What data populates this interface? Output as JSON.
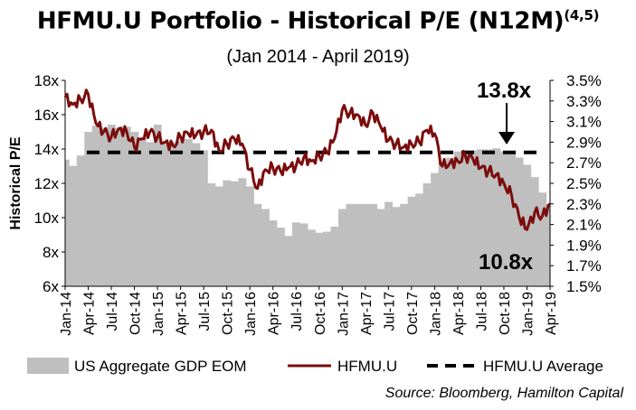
{
  "title": "HFMU.U Portfolio - Historical P/E (N12M)",
  "title_superscript": "(4,5)",
  "subtitle": "(Jan 2014 - April 2019)",
  "source": "Source: Bloomberg, Hamilton Capital",
  "colors": {
    "area": "#bfbfbf",
    "line": "#7b0c0c",
    "average": "#000000",
    "text": "#000000"
  },
  "chart_data": {
    "type": "line",
    "title": "HFMU.U Portfolio - Historical P/E (N12M)",
    "subtitle": "(Jan 2014 - April 2019)",
    "ylabel": "Historical P/E",
    "ylim": [
      6,
      18
    ],
    "y_ticks": [
      "6x",
      "8x",
      "10x",
      "12x",
      "14x",
      "16x",
      "18x"
    ],
    "y2lim": [
      1.5,
      3.5
    ],
    "y2_ticks": [
      "1.5%",
      "1.7%",
      "1.9%",
      "2.1%",
      "2.3%",
      "2.5%",
      "2.7%",
      "2.9%",
      "3.1%",
      "3.3%",
      "3.5%"
    ],
    "x_ticks": [
      "Jan-14",
      "Apr-14",
      "Jul-14",
      "Oct-14",
      "Jan-15",
      "Apr-15",
      "Jul-15",
      "Oct-15",
      "Jan-16",
      "Apr-16",
      "Jul-16",
      "Oct-16",
      "Jan-17",
      "Apr-17",
      "Jul-17",
      "Oct-17",
      "Jan-18",
      "Apr-18",
      "Jul-18",
      "Oct-18",
      "Jan-19",
      "Apr-19"
    ],
    "legend": {
      "position": "bottom",
      "entries": [
        "US Aggregate GDP EOM",
        "HFMU.U",
        "HFMU.U Average"
      ]
    },
    "annotations": [
      {
        "text": "13.8x",
        "points_to": "HFMU.U Average"
      },
      {
        "text": "10.8x",
        "points_to": "HFMU.U"
      }
    ],
    "series": [
      {
        "name": "US Aggregate GDP EOM",
        "type": "area",
        "axis": "right",
        "x": [
          "2014-01",
          "2014-02",
          "2014-03",
          "2014-04",
          "2014-05",
          "2014-06",
          "2014-07",
          "2014-08",
          "2014-09",
          "2014-10",
          "2014-11",
          "2014-12",
          "2015-01",
          "2015-02",
          "2015-03",
          "2015-04",
          "2015-05",
          "2015-06",
          "2015-07",
          "2015-08",
          "2015-09",
          "2015-10",
          "2015-11",
          "2015-12",
          "2016-01",
          "2016-02",
          "2016-03",
          "2016-04",
          "2016-05",
          "2016-06",
          "2016-07",
          "2016-08",
          "2016-09",
          "2016-10",
          "2016-11",
          "2016-12",
          "2017-01",
          "2017-02",
          "2017-03",
          "2017-04",
          "2017-05",
          "2017-06",
          "2017-07",
          "2017-08",
          "2017-09",
          "2017-10",
          "2017-11",
          "2017-12",
          "2018-01",
          "2018-02",
          "2018-03",
          "2018-04",
          "2018-05",
          "2018-06",
          "2018-07",
          "2018-08",
          "2018-09",
          "2018-10",
          "2018-11",
          "2018-12",
          "2019-01",
          "2019-02",
          "2019-03",
          "2019-04"
        ],
        "values": [
          2.73,
          2.67,
          2.77,
          3.0,
          3.06,
          3.04,
          3.07,
          3.04,
          3.05,
          3.0,
          2.94,
          2.9,
          3.07,
          2.9,
          2.9,
          2.91,
          2.93,
          2.89,
          2.82,
          2.5,
          2.47,
          2.53,
          2.52,
          2.55,
          2.47,
          2.3,
          2.25,
          2.14,
          2.07,
          1.99,
          2.12,
          2.11,
          2.05,
          2.02,
          2.03,
          2.08,
          2.25,
          2.3,
          2.3,
          2.3,
          2.3,
          2.25,
          2.32,
          2.27,
          2.3,
          2.37,
          2.4,
          2.5,
          2.6,
          2.7,
          2.75,
          2.81,
          2.82,
          2.82,
          2.83,
          2.83,
          2.84,
          2.81,
          2.79,
          2.75,
          2.68,
          2.56,
          2.41,
          2.3
        ]
      },
      {
        "name": "HFMU.U",
        "type": "line",
        "axis": "left",
        "x": [
          "2014-01",
          "2014-02",
          "2014-03",
          "2014-04",
          "2014-05",
          "2014-06",
          "2014-07",
          "2014-08",
          "2014-09",
          "2014-10",
          "2014-11",
          "2014-12",
          "2015-01",
          "2015-02",
          "2015-03",
          "2015-04",
          "2015-05",
          "2015-06",
          "2015-07",
          "2015-08",
          "2015-09",
          "2015-10",
          "2015-11",
          "2015-12",
          "2016-01",
          "2016-02",
          "2016-03",
          "2016-04",
          "2016-05",
          "2016-06",
          "2016-07",
          "2016-08",
          "2016-09",
          "2016-10",
          "2016-11",
          "2016-12",
          "2017-01",
          "2017-02",
          "2017-03",
          "2017-04",
          "2017-05",
          "2017-06",
          "2017-07",
          "2017-08",
          "2017-09",
          "2017-10",
          "2017-11",
          "2017-12",
          "2018-01",
          "2018-02",
          "2018-03",
          "2018-04",
          "2018-05",
          "2018-06",
          "2018-07",
          "2018-08",
          "2018-09",
          "2018-10",
          "2018-11",
          "2018-12",
          "2019-01",
          "2019-02",
          "2019-03",
          "2019-04"
        ],
        "values": [
          17.0,
          16.6,
          16.9,
          17.2,
          15.5,
          15.0,
          14.7,
          15.2,
          15.0,
          14.1,
          14.6,
          15.0,
          14.7,
          14.4,
          14.2,
          14.7,
          14.9,
          14.8,
          15.0,
          15.1,
          13.9,
          14.3,
          14.6,
          14.3,
          12.8,
          11.7,
          12.8,
          12.9,
          12.7,
          12.9,
          13.0,
          13.5,
          13.3,
          13.6,
          13.8,
          14.6,
          16.3,
          16.1,
          16.0,
          15.4,
          16.1,
          15.3,
          14.5,
          14.3,
          14.1,
          14.3,
          14.4,
          15.1,
          14.9,
          13.0,
          13.2,
          13.3,
          13.6,
          13.4,
          12.9,
          12.7,
          12.5,
          12.0,
          11.3,
          10.0,
          9.3,
          10.3,
          10.1,
          10.8
        ]
      },
      {
        "name": "HFMU.U Average",
        "type": "line",
        "style": "dashed",
        "axis": "left",
        "values": [
          13.8
        ]
      }
    ]
  }
}
